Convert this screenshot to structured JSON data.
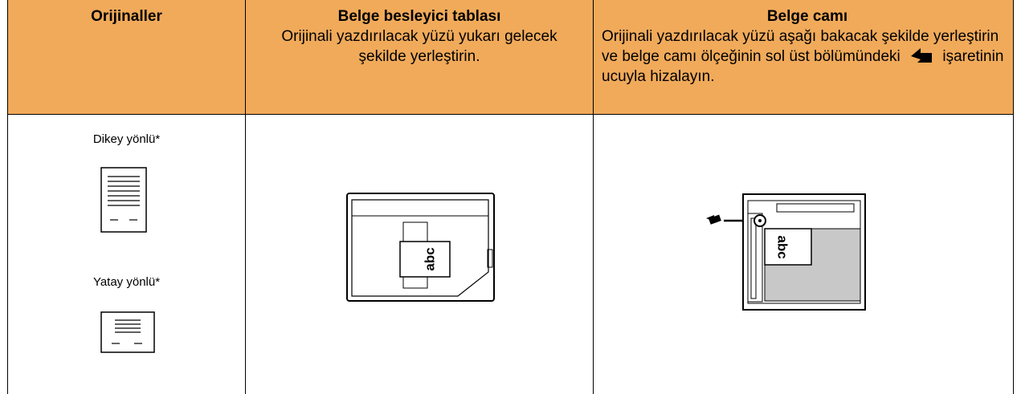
{
  "table": {
    "columns": [
      {
        "title": "Orijinaller"
      },
      {
        "title": "Belge besleyici tablası",
        "text": "Orijinali yazdırılacak yüzü yukarı gelecek şekilde yerleştirin."
      },
      {
        "title": "Belge camı",
        "text_before": "Orijinali yazdırılacak yüzü aşağı bakacak şekilde yerleştirin ve belge camı ölçeğinin sol üst bölümündeki",
        "text_after": "işaretinin ucuyla hizalayın."
      }
    ],
    "originals": [
      "Dikey yönlü*",
      "Yatay yönlü*"
    ],
    "feeder_label": "abc",
    "glass_label": "abc"
  }
}
